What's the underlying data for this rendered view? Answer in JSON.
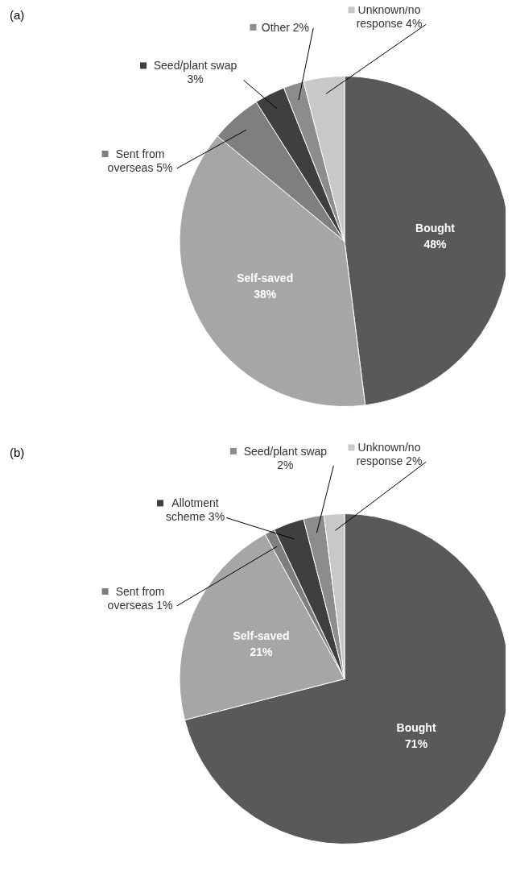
{
  "chart_data": [
    {
      "type": "pie",
      "title": "(a)",
      "legend": "top left",
      "categories": [
        "Bought",
        "Self-saved",
        "Sent from overseas",
        "Seed/plant swap",
        "Other",
        "Unknown/no response"
      ],
      "values": [
        48,
        38,
        5,
        3,
        2,
        4
      ],
      "value_labels": [
        "48%",
        "38%",
        "5%",
        "3%",
        "2%",
        "4%"
      ],
      "colors": [
        "#595959",
        "#a6a6a6",
        "#7f7f7f",
        "#3f3f3f",
        "#8c8c8c",
        "#c8c8c8"
      ]
    },
    {
      "type": "pie",
      "title": "(b)",
      "legend": "top left",
      "categories": [
        "Bought",
        "Self-saved",
        "Sent from overseas",
        "Allotment scheme",
        "Seed/plant swap",
        "Unknown/no response"
      ],
      "values": [
        71,
        21,
        1,
        3,
        2,
        2
      ],
      "value_labels": [
        "71%",
        "21%",
        "1%",
        "3%",
        "2%",
        "2%"
      ],
      "colors": [
        "#595959",
        "#a6a6a6",
        "#7f7f7f",
        "#3f3f3f",
        "#8c8c8c",
        "#c8c8c8"
      ]
    }
  ]
}
